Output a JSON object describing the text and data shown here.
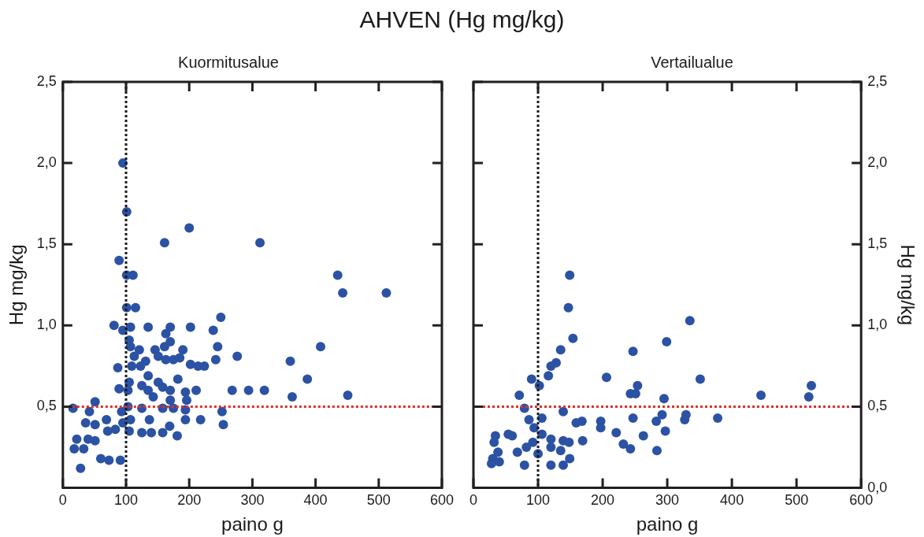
{
  "chart_data": [
    {
      "type": "scatter",
      "title": "AHVEN (Hg mg/kg)",
      "subtitle": "Kuormitusalue",
      "xlabel": "paino g",
      "ylabel": "Hg mg/kg",
      "marker": "circle",
      "grid": false,
      "xlim": [
        0,
        600
      ],
      "xticks": [
        0,
        100,
        200,
        300,
        400,
        500,
        600
      ],
      "ylim": [
        0,
        2.5
      ],
      "yticks": [
        {
          "value": 0.5,
          "label": "0,5"
        },
        {
          "value": 1,
          "label": "1,0"
        },
        {
          "value": 1.5,
          "label": "1,5"
        },
        {
          "value": 2,
          "label": "2,0"
        },
        {
          "value": 2.5,
          "label": "2,5"
        }
      ],
      "ref_lines": [
        {
          "axis": "x",
          "value": 100,
          "color": "#1a1a1a",
          "line_style": "dotted"
        },
        {
          "axis": "y",
          "value": 0.5,
          "color": "#e0302a",
          "line_style": "dotted"
        }
      ],
      "series": [
        {
          "color": "#2b52a3",
          "x": [
            16,
            28,
            18,
            33,
            22,
            40,
            51,
            60,
            73,
            91,
            42,
            51,
            36,
            51,
            69,
            71,
            83,
            95,
            105,
            107,
            93,
            103,
            89,
            105,
            103,
            87,
            109,
            113,
            121,
            107,
            105,
            81,
            95,
            107,
            135,
            123,
            131,
            135,
            125,
            135,
            143,
            125,
            125,
            137,
            140,
            146,
            151,
            151,
            158,
            163,
            170,
            170,
            161,
            163,
            175,
            185,
            190,
            182,
            170,
            170,
            158,
            175,
            194,
            196,
            194,
            194,
            169,
            181,
            158,
            202,
            202,
            214,
            224,
            211,
            218,
            238,
            250,
            245,
            242,
            252,
            254,
            268,
            276,
            294,
            319,
            89,
            101,
            111,
            101,
            115,
            161,
            312,
            95,
            101,
            200,
            360,
            363,
            387,
            408,
            435,
            443,
            512,
            451
          ],
          "values": [
            0.49,
            0.12,
            0.24,
            0.24,
            0.3,
            0.3,
            0.29,
            0.18,
            0.17,
            0.17,
            0.47,
            0.53,
            0.4,
            0.39,
            0.42,
            0.35,
            0.36,
            0.4,
            0.35,
            0.42,
            0.47,
            0.5,
            0.61,
            0.65,
            0.6,
            0.74,
            0.75,
            0.81,
            0.85,
            0.87,
            0.91,
            1.0,
            0.97,
            0.99,
            0.99,
            0.75,
            0.78,
            0.69,
            0.63,
            0.6,
            0.56,
            0.49,
            0.34,
            0.42,
            0.34,
            0.85,
            0.81,
            0.65,
            0.62,
            0.95,
            0.99,
            0.9,
            0.87,
            0.79,
            0.79,
            0.8,
            0.85,
            0.67,
            0.6,
            0.54,
            0.49,
            0.49,
            0.59,
            0.54,
            0.48,
            0.42,
            0.38,
            0.32,
            0.34,
            0.99,
            0.76,
            0.75,
            0.75,
            0.6,
            0.42,
            0.97,
            1.05,
            0.87,
            0.79,
            0.47,
            0.39,
            0.6,
            0.81,
            0.6,
            0.6,
            1.4,
            1.31,
            1.31,
            1.11,
            1.11,
            1.51,
            1.51,
            2.0,
            1.7,
            1.6,
            0.78,
            0.56,
            0.67,
            0.87,
            1.31,
            1.2,
            1.2,
            0.57
          ]
        }
      ]
    },
    {
      "type": "scatter",
      "title": "Vertailualue",
      "xlabel": "paino g",
      "y2label": "Hg mg/kg",
      "marker": "circle",
      "grid": false,
      "xlim": [
        0,
        600
      ],
      "xticks": [
        0,
        100,
        200,
        300,
        400,
        500,
        600
      ],
      "y2lim": [
        0,
        2.5
      ],
      "y2ticks": [
        {
          "value": 0,
          "label": "0,0"
        },
        {
          "value": 0.5,
          "label": "0,5"
        },
        {
          "value": 1,
          "label": "1,0"
        },
        {
          "value": 1.5,
          "label": "1,5"
        },
        {
          "value": 2,
          "label": "2,0"
        },
        {
          "value": 2.5,
          "label": "2,5"
        }
      ],
      "ref_lines": [
        {
          "axis": "x",
          "value": 100,
          "color": "#1a1a1a",
          "line_style": "dotted"
        },
        {
          "axis": "y2",
          "value": 0.5,
          "color": "#e0302a",
          "line_style": "dotted"
        }
      ],
      "series": [
        {
          "color": "#2b52a3",
          "axis": "y2",
          "x": [
            149,
            147,
            335,
            154,
            299,
            135,
            247,
            128,
            120,
            116,
            206,
            351,
            90,
            102,
            523,
            254,
            71,
            243,
            251,
            295,
            445,
            519,
            79,
            139,
            106,
            86,
            159,
            168,
            197,
            197,
            247,
            283,
            292,
            329,
            327,
            378,
            297,
            221,
            263,
            232,
            243,
            284,
            169,
            94,
            106,
            92,
            82,
            100,
            120,
            120,
            139,
            148,
            135,
            149,
            139,
            120,
            79,
            68,
            54,
            60,
            34,
            32,
            38,
            30,
            40,
            28
          ],
          "values": [
            1.31,
            1.11,
            1.03,
            0.92,
            0.9,
            0.85,
            0.84,
            0.77,
            0.75,
            0.69,
            0.68,
            0.67,
            0.67,
            0.63,
            0.63,
            0.63,
            0.57,
            0.58,
            0.58,
            0.55,
            0.57,
            0.56,
            0.49,
            0.47,
            0.43,
            0.42,
            0.4,
            0.41,
            0.41,
            0.37,
            0.43,
            0.41,
            0.45,
            0.45,
            0.42,
            0.43,
            0.35,
            0.34,
            0.32,
            0.27,
            0.24,
            0.23,
            0.29,
            0.37,
            0.33,
            0.28,
            0.25,
            0.21,
            0.3,
            0.25,
            0.29,
            0.28,
            0.23,
            0.18,
            0.14,
            0.14,
            0.14,
            0.22,
            0.33,
            0.32,
            0.32,
            0.28,
            0.22,
            0.18,
            0.16,
            0.15
          ]
        }
      ]
    }
  ]
}
